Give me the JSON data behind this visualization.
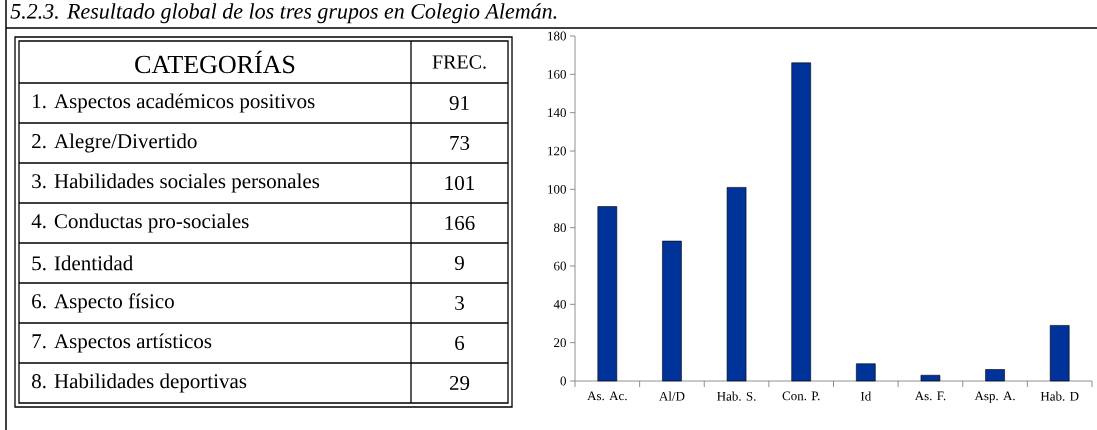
{
  "chart_data": [
    {
      "type": "other",
      "title": "5.2.3. Resultado global de los tres grupos en Colegio Alemán.",
      "categories": [
        "1. Aspectos académicos positivos",
        "2. Alegre/Divertido",
        "3. Habilidades sociales personales",
        "4. Conductas pro-sociales",
        "5. Identidad",
        "6. Aspecto físico",
        "7. Aspectos artísticos",
        "8. Habilidades deportivas"
      ],
      "values": [
        91,
        73,
        101,
        166,
        9,
        3,
        6,
        29
      ],
      "data_labels": true,
      "annotations": [
        "CATEGORÍAS",
        "FREC."
      ]
    },
    {
      "type": "bar",
      "categories": [
        "As. Ac.",
        "Al/D",
        "Hab. S.",
        "Con. P.",
        "Id",
        "As. F.",
        "Asp. A.",
        "Hab. D"
      ],
      "values": [
        91,
        73,
        101,
        166,
        9,
        3,
        6,
        29
      ],
      "color": "#003399",
      "ylim": [
        0,
        180
      ],
      "yticks": [
        0,
        20,
        40,
        60,
        80,
        100,
        120,
        140,
        160,
        180
      ]
    }
  ]
}
